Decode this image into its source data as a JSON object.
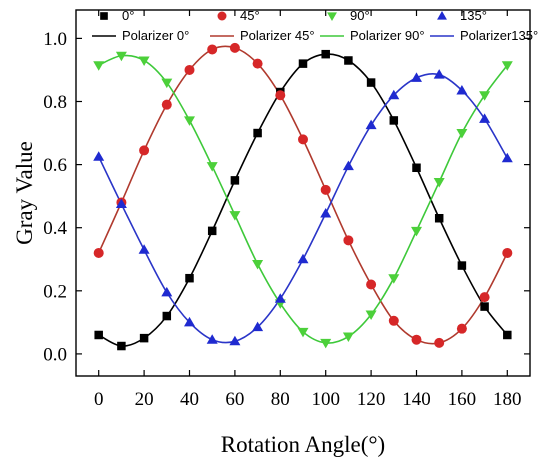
{
  "chart_data": {
    "type": "scatter",
    "xlabel": "Rotation Angle(°)",
    "ylabel": "Gray Value",
    "xlim": [
      -10,
      190
    ],
    "ylim": [
      -0.07,
      1.09
    ],
    "xticks": [
      0,
      20,
      40,
      60,
      80,
      100,
      120,
      140,
      160,
      180
    ],
    "yticks": [
      0.0,
      0.2,
      0.4,
      0.6,
      0.8,
      1.0
    ],
    "xtick_labels": [
      "0",
      "20",
      "40",
      "60",
      "80",
      "100",
      "120",
      "140",
      "160",
      "180"
    ],
    "ytick_labels": [
      "0.0",
      "0.2",
      "0.4",
      "0.6",
      "0.8",
      "1.0"
    ],
    "grid": false,
    "legend": "top, inside plot, two rows",
    "x": [
      0,
      10,
      20,
      30,
      40,
      50,
      60,
      70,
      80,
      90,
      100,
      110,
      120,
      130,
      140,
      150,
      160,
      170,
      180
    ],
    "series": [
      {
        "name": "0°",
        "fit_name": "Polarizer 0°",
        "marker": "square",
        "marker_color": "#000000",
        "line_color": "#000000",
        "values": [
          0.06,
          0.025,
          0.05,
          0.12,
          0.24,
          0.39,
          0.55,
          0.7,
          0.83,
          0.92,
          0.95,
          0.93,
          0.86,
          0.74,
          0.59,
          0.43,
          0.28,
          0.15,
          0.06
        ]
      },
      {
        "name": "45°",
        "fit_name": "Polarizer 45°",
        "marker": "circle",
        "marker_color": "#d62728",
        "line_color": "#b03a2e",
        "values": [
          0.32,
          0.48,
          0.645,
          0.79,
          0.9,
          0.965,
          0.97,
          0.92,
          0.82,
          0.68,
          0.52,
          0.36,
          0.22,
          0.105,
          0.045,
          0.035,
          0.08,
          0.18,
          0.32
        ]
      },
      {
        "name": "90°",
        "fit_name": "Polarizer 90°",
        "marker": "triangle-down",
        "marker_color": "#4cd03a",
        "line_color": "#3ec93a",
        "values": [
          0.915,
          0.945,
          0.93,
          0.86,
          0.74,
          0.595,
          0.44,
          0.285,
          0.16,
          0.07,
          0.035,
          0.055,
          0.125,
          0.24,
          0.39,
          0.545,
          0.7,
          0.82,
          0.915
        ]
      },
      {
        "name": "135°",
        "fit_name": "Polarizer135°",
        "marker": "triangle-up",
        "marker_color": "#1f2ad0",
        "line_color": "#2a35c8",
        "values": [
          0.625,
          0.475,
          0.33,
          0.195,
          0.1,
          0.045,
          0.04,
          0.085,
          0.175,
          0.3,
          0.445,
          0.595,
          0.725,
          0.82,
          0.875,
          0.885,
          0.835,
          0.745,
          0.62
        ]
      }
    ]
  }
}
